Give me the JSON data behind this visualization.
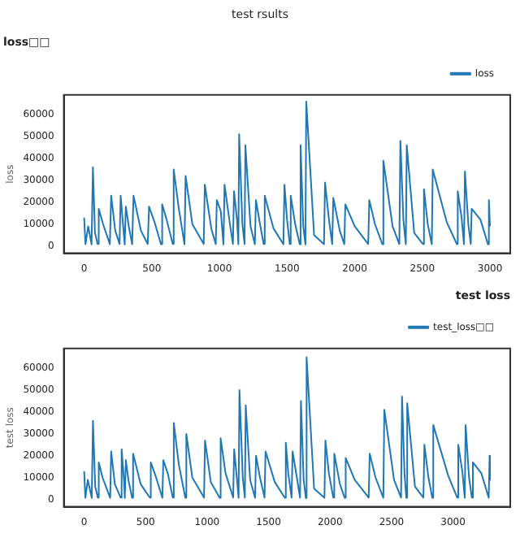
{
  "chart_data": [
    {
      "type": "line",
      "title": "loss□□",
      "ylabel": "loss",
      "annotations": [
        "test rsults"
      ],
      "legend": "top right",
      "grid": false,
      "xlim": [
        -150,
        3150
      ],
      "xticks": [
        0,
        500,
        1000,
        1500,
        2000,
        2500,
        3000
      ],
      "ylim": [
        -3300,
        69000
      ],
      "yticks": [
        0,
        10000,
        20000,
        30000,
        40000,
        50000,
        60000
      ],
      "series": [
        {
          "name": "loss",
          "color": "#1f77b4",
          "x": [
            0,
            10,
            30,
            55,
            65,
            80,
            100,
            108,
            140,
            190,
            200,
            230,
            262,
            270,
            290,
            300,
            308,
            330,
            355,
            365,
            420,
            470,
            480,
            520,
            568,
            577,
            610,
            655,
            662,
            700,
            742,
            750,
            800,
            884,
            892,
            940,
            973,
            981,
            1010,
            1030,
            1038,
            1080,
            1100,
            1108,
            1130,
            1140,
            1146,
            1170,
            1186,
            1192,
            1230,
            1262,
            1270,
            1300,
            1327,
            1335,
            1400,
            1473,
            1481,
            1500,
            1520,
            1527,
            1560,
            1594,
            1600,
            1620,
            1636,
            1642,
            1700,
            1773,
            1781,
            1810,
            1834,
            1842,
            1890,
            1923,
            1931,
            2000,
            2100,
            2108,
            2150,
            2205,
            2212,
            2280,
            2330,
            2338,
            2360,
            2378,
            2385,
            2440,
            2505,
            2512,
            2540,
            2570,
            2577,
            2680,
            2755,
            2762,
            2790,
            2808,
            2815,
            2840,
            2858,
            2865,
            2930,
            2985,
            2992,
            3000
          ],
          "values": [
            13000,
            800,
            9000,
            700,
            36000,
            6000,
            900,
            17000,
            10000,
            800,
            23000,
            7000,
            900,
            23000,
            8000,
            700,
            18000,
            9000,
            800,
            23000,
            7000,
            900,
            18000,
            11000,
            800,
            19000,
            12000,
            900,
            35000,
            17000,
            800,
            32000,
            10000,
            900,
            28000,
            8000,
            800,
            21000,
            16000,
            700,
            28000,
            9000,
            900,
            25000,
            12000,
            800,
            51000,
            10000,
            900,
            46000,
            9000,
            800,
            21000,
            10000,
            900,
            23000,
            8000,
            800,
            28000,
            12000,
            900,
            23000,
            10000,
            800,
            46000,
            9000,
            700,
            66000,
            5000,
            800,
            29000,
            12000,
            900,
            22000,
            7000,
            800,
            19000,
            9000,
            900,
            21000,
            10000,
            800,
            39000,
            9000,
            900,
            48000,
            12000,
            800,
            46000,
            6000,
            900,
            26000,
            10000,
            800,
            35000,
            11000,
            900,
            25000,
            13000,
            800,
            34000,
            10000,
            900,
            17000,
            12000,
            800,
            21000,
            9000
          ]
        }
      ]
    },
    {
      "type": "line",
      "title": "test loss",
      "ylabel": "test loss",
      "legend": "top right",
      "grid": false,
      "xlim": [
        -165,
        3465
      ],
      "xticks": [
        0,
        500,
        1000,
        1500,
        2000,
        2500,
        3000
      ],
      "ylim": [
        -3300,
        69000
      ],
      "yticks": [
        0,
        10000,
        20000,
        30000,
        40000,
        50000,
        60000
      ],
      "series": [
        {
          "name": "test_loss□□",
          "color": "#1f77b4",
          "x": [
            0,
            10,
            30,
            62,
            72,
            90,
            111,
            119,
            150,
            212,
            220,
            250,
            297,
            305,
            325,
            331,
            339,
            360,
            390,
            398,
            460,
            534,
            542,
            580,
            636,
            644,
            680,
            721,
            729,
            770,
            823,
            831,
            880,
            975,
            983,
            1030,
            1102,
            1110,
            1150,
            1212,
            1220,
            1240,
            1256,
            1263,
            1290,
            1307,
            1314,
            1350,
            1390,
            1398,
            1430,
            1467,
            1475,
            1550,
            1632,
            1640,
            1660,
            1687,
            1695,
            1730,
            1756,
            1763,
            1785,
            1803,
            1809,
            1870,
            1954,
            1962,
            1990,
            2026,
            2034,
            2080,
            2119,
            2127,
            2200,
            2314,
            2322,
            2370,
            2433,
            2441,
            2520,
            2577,
            2585,
            2605,
            2620,
            2627,
            2690,
            2759,
            2767,
            2800,
            2831,
            2839,
            2960,
            3034,
            3042,
            3075,
            3095,
            3102,
            3130,
            3153,
            3161,
            3230,
            3290,
            3297,
            3300
          ],
          "values": [
            13000,
            800,
            9000,
            700,
            36000,
            6000,
            900,
            17000,
            10000,
            800,
            22000,
            7000,
            900,
            23000,
            8000,
            700,
            18000,
            9000,
            800,
            21000,
            7000,
            900,
            17000,
            11000,
            800,
            18000,
            12000,
            900,
            35000,
            16000,
            800,
            30000,
            10000,
            900,
            27000,
            8000,
            800,
            28000,
            12000,
            900,
            23000,
            11000,
            800,
            50000,
            10000,
            900,
            43000,
            9000,
            800,
            20000,
            10000,
            900,
            22000,
            8000,
            800,
            26000,
            12000,
            900,
            22000,
            10000,
            800,
            45000,
            9000,
            700,
            65000,
            5000,
            800,
            27000,
            12000,
            900,
            21000,
            7000,
            800,
            19000,
            9000,
            900,
            21000,
            10000,
            800,
            41000,
            9000,
            900,
            47000,
            12000,
            800,
            44000,
            6000,
            900,
            25000,
            10000,
            800,
            34000,
            11000,
            900,
            25000,
            13000,
            800,
            34000,
            10000,
            900,
            17000,
            12000,
            800,
            20000,
            9000
          ]
        }
      ]
    }
  ]
}
